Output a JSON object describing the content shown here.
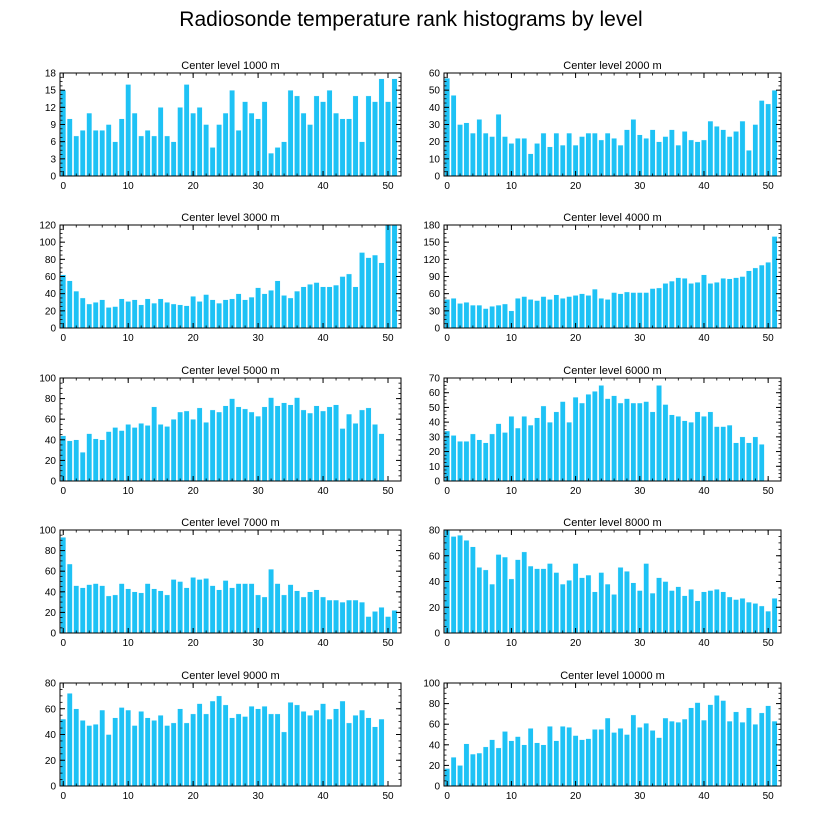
{
  "figure": {
    "title": "Radiosonde temperature rank histograms by level"
  },
  "style": {
    "bar_color": "#1ec2f5",
    "bar_stroke": "#ffffff",
    "axis_color": "#000000"
  },
  "chart_data": [
    {
      "type": "bar",
      "title": "Center level 1000 m",
      "x": [
        0,
        1,
        2,
        3,
        4,
        5,
        6,
        7,
        8,
        9,
        10,
        11,
        12,
        13,
        14,
        15,
        16,
        17,
        18,
        19,
        20,
        21,
        22,
        23,
        24,
        25,
        26,
        27,
        28,
        29,
        30,
        31,
        32,
        33,
        34,
        35,
        36,
        37,
        38,
        39,
        40,
        41,
        42,
        43,
        44,
        45,
        46,
        47,
        48,
        49,
        50,
        51
      ],
      "values": [
        15,
        10,
        7,
        8,
        11,
        8,
        8,
        9,
        6,
        10,
        16,
        11,
        7,
        8,
        7,
        12,
        7,
        6,
        12,
        16,
        11,
        12,
        9,
        5,
        9,
        11,
        15,
        8,
        13,
        11,
        10,
        13,
        4,
        5,
        6,
        15,
        14,
        11,
        9,
        14,
        13,
        15,
        11,
        10,
        10,
        14,
        6,
        14,
        13,
        17,
        13,
        17
      ],
      "xlim": [
        -0.5,
        52
      ],
      "ylim": [
        0,
        18
      ],
      "yticks": [
        0,
        3,
        6,
        9,
        12,
        15,
        18
      ],
      "xticks": [
        0,
        10,
        20,
        30,
        40,
        50
      ]
    },
    {
      "type": "bar",
      "title": "Center level 2000 m",
      "x": [
        0,
        1,
        2,
        3,
        4,
        5,
        6,
        7,
        8,
        9,
        10,
        11,
        12,
        13,
        14,
        15,
        16,
        17,
        18,
        19,
        20,
        21,
        22,
        23,
        24,
        25,
        26,
        27,
        28,
        29,
        30,
        31,
        32,
        33,
        34,
        35,
        36,
        37,
        38,
        39,
        40,
        41,
        42,
        43,
        44,
        45,
        46,
        47,
        48,
        49,
        50,
        51
      ],
      "values": [
        57,
        47,
        30,
        31,
        25,
        33,
        25,
        23,
        36,
        23,
        19,
        22,
        22,
        13,
        19,
        25,
        17,
        25,
        18,
        25,
        18,
        23,
        25,
        25,
        21,
        25,
        22,
        18,
        27,
        33,
        24,
        22,
        27,
        20,
        23,
        27,
        18,
        26,
        21,
        20,
        21,
        32,
        29,
        27,
        23,
        26,
        32,
        15,
        30,
        44,
        42,
        50
      ],
      "xlim": [
        -0.5,
        52
      ],
      "ylim": [
        0,
        60
      ],
      "yticks": [
        0,
        10,
        20,
        30,
        40,
        50,
        60
      ],
      "xticks": [
        0,
        10,
        20,
        30,
        40,
        50
      ]
    },
    {
      "type": "bar",
      "title": "Center level 3000 m",
      "x": [
        0,
        1,
        2,
        3,
        4,
        5,
        6,
        7,
        8,
        9,
        10,
        11,
        12,
        13,
        14,
        15,
        16,
        17,
        18,
        19,
        20,
        21,
        22,
        23,
        24,
        25,
        26,
        27,
        28,
        29,
        30,
        31,
        32,
        33,
        34,
        35,
        36,
        37,
        38,
        39,
        40,
        41,
        42,
        43,
        44,
        45,
        46,
        47,
        48,
        49,
        50,
        51
      ],
      "values": [
        62,
        55,
        43,
        35,
        28,
        30,
        33,
        24,
        25,
        34,
        31,
        33,
        27,
        34,
        29,
        34,
        30,
        28,
        27,
        26,
        37,
        31,
        39,
        33,
        29,
        33,
        34,
        40,
        33,
        36,
        47,
        40,
        44,
        55,
        38,
        35,
        43,
        48,
        51,
        53,
        48,
        48,
        50,
        60,
        63,
        48,
        88,
        82,
        85,
        76,
        120,
        120
      ],
      "xlim": [
        -0.5,
        52
      ],
      "ylim": [
        0,
        120
      ],
      "yticks": [
        0,
        20,
        40,
        60,
        80,
        100,
        120
      ],
      "xticks": [
        0,
        10,
        20,
        30,
        40,
        50
      ]
    },
    {
      "type": "bar",
      "title": "Center level 4000 m",
      "x": [
        0,
        1,
        2,
        3,
        4,
        5,
        6,
        7,
        8,
        9,
        10,
        11,
        12,
        13,
        14,
        15,
        16,
        17,
        18,
        19,
        20,
        21,
        22,
        23,
        24,
        25,
        26,
        27,
        28,
        29,
        30,
        31,
        32,
        33,
        34,
        35,
        36,
        37,
        38,
        39,
        40,
        41,
        42,
        43,
        44,
        45,
        46,
        47,
        48,
        49,
        50,
        51
      ],
      "values": [
        50,
        52,
        43,
        45,
        40,
        40,
        34,
        38,
        40,
        42,
        30,
        52,
        55,
        50,
        48,
        55,
        50,
        58,
        52,
        55,
        57,
        60,
        57,
        68,
        52,
        50,
        62,
        60,
        63,
        62,
        62,
        62,
        69,
        70,
        78,
        82,
        88,
        87,
        78,
        80,
        93,
        78,
        80,
        87,
        86,
        88,
        90,
        100,
        105,
        110,
        115,
        160
      ],
      "xlim": [
        -0.5,
        52
      ],
      "ylim": [
        0,
        180
      ],
      "yticks": [
        0,
        30,
        60,
        90,
        120,
        150,
        180
      ],
      "xticks": [
        0,
        10,
        20,
        30,
        40,
        50
      ]
    },
    {
      "type": "bar",
      "title": "Center level 5000 m",
      "x": [
        0,
        1,
        2,
        3,
        4,
        5,
        6,
        7,
        8,
        9,
        10,
        11,
        12,
        13,
        14,
        15,
        16,
        17,
        18,
        19,
        20,
        21,
        22,
        23,
        24,
        25,
        26,
        27,
        28,
        29,
        30,
        31,
        32,
        33,
        34,
        35,
        36,
        37,
        38,
        39,
        40,
        41,
        42,
        43,
        44,
        45,
        46,
        47,
        48,
        49,
        50,
        51
      ],
      "values": [
        44,
        39,
        40,
        28,
        46,
        41,
        40,
        48,
        52,
        49,
        55,
        52,
        56,
        54,
        72,
        55,
        53,
        60,
        67,
        68,
        60,
        71,
        57,
        69,
        67,
        73,
        80,
        72,
        70,
        67,
        63,
        72,
        81,
        73,
        76,
        74,
        81,
        69,
        66,
        73,
        68,
        72,
        74,
        51,
        65,
        56,
        69,
        71,
        55,
        46,
        0,
        0
      ],
      "xlim": [
        -0.5,
        52
      ],
      "ylim": [
        0,
        100
      ],
      "yticks": [
        0,
        20,
        40,
        60,
        80,
        100
      ],
      "xticks": [
        0,
        10,
        20,
        30,
        40,
        50
      ]
    },
    {
      "type": "bar",
      "title": "Center level 6000 m",
      "x": [
        0,
        1,
        2,
        3,
        4,
        5,
        6,
        7,
        8,
        9,
        10,
        11,
        12,
        13,
        14,
        15,
        16,
        17,
        18,
        19,
        20,
        21,
        22,
        23,
        24,
        25,
        26,
        27,
        28,
        29,
        30,
        31,
        32,
        33,
        34,
        35,
        36,
        37,
        38,
        39,
        40,
        41,
        42,
        43,
        44,
        45,
        46,
        47,
        48,
        49,
        50,
        51
      ],
      "values": [
        34,
        31,
        27,
        27,
        32,
        28,
        26,
        32,
        39,
        33,
        44,
        36,
        44,
        38,
        43,
        51,
        40,
        47,
        54,
        40,
        57,
        53,
        59,
        61,
        65,
        56,
        58,
        53,
        56,
        53,
        53,
        54,
        47,
        65,
        52,
        45,
        44,
        41,
        40,
        47,
        44,
        47,
        37,
        37,
        38,
        26,
        30,
        26,
        30,
        25,
        0,
        0
      ],
      "xlim": [
        -0.5,
        52
      ],
      "ylim": [
        0,
        70
      ],
      "yticks": [
        0,
        10,
        20,
        30,
        40,
        50,
        60,
        70
      ],
      "xticks": [
        0,
        10,
        20,
        30,
        40,
        50
      ]
    },
    {
      "type": "bar",
      "title": "Center level 7000 m",
      "x": [
        0,
        1,
        2,
        3,
        4,
        5,
        6,
        7,
        8,
        9,
        10,
        11,
        12,
        13,
        14,
        15,
        16,
        17,
        18,
        19,
        20,
        21,
        22,
        23,
        24,
        25,
        26,
        27,
        28,
        29,
        30,
        31,
        32,
        33,
        34,
        35,
        36,
        37,
        38,
        39,
        40,
        41,
        42,
        43,
        44,
        45,
        46,
        47,
        48,
        49,
        50,
        51
      ],
      "values": [
        93,
        67,
        46,
        44,
        47,
        48,
        46,
        36,
        37,
        48,
        43,
        40,
        39,
        48,
        43,
        41,
        37,
        52,
        50,
        44,
        54,
        52,
        53,
        46,
        42,
        51,
        44,
        48,
        48,
        48,
        37,
        35,
        62,
        48,
        37,
        47,
        41,
        35,
        40,
        42,
        35,
        32,
        32,
        30,
        32,
        32,
        30,
        16,
        21,
        25,
        16,
        22
      ],
      "xlim": [
        -0.5,
        52
      ],
      "ylim": [
        0,
        100
      ],
      "yticks": [
        0,
        20,
        40,
        60,
        80,
        100
      ],
      "xticks": [
        0,
        10,
        20,
        30,
        40,
        50
      ]
    },
    {
      "type": "bar",
      "title": "Center level 8000 m",
      "x": [
        0,
        1,
        2,
        3,
        4,
        5,
        6,
        7,
        8,
        9,
        10,
        11,
        12,
        13,
        14,
        15,
        16,
        17,
        18,
        19,
        20,
        21,
        22,
        23,
        24,
        25,
        26,
        27,
        28,
        29,
        30,
        31,
        32,
        33,
        34,
        35,
        36,
        37,
        38,
        39,
        40,
        41,
        42,
        43,
        44,
        45,
        46,
        47,
        48,
        49,
        50,
        51
      ],
      "values": [
        80,
        75,
        76,
        72,
        67,
        51,
        49,
        38,
        61,
        59,
        42,
        57,
        63,
        52,
        50,
        50,
        54,
        47,
        38,
        41,
        54,
        43,
        45,
        32,
        47,
        38,
        30,
        51,
        48,
        39,
        33,
        54,
        31,
        43,
        40,
        33,
        36,
        29,
        34,
        25,
        32,
        33,
        34,
        32,
        28,
        26,
        27,
        24,
        23,
        21,
        17,
        27
      ],
      "xlim": [
        -0.5,
        52
      ],
      "ylim": [
        0,
        80
      ],
      "yticks": [
        0,
        20,
        40,
        60,
        80
      ],
      "xticks": [
        0,
        10,
        20,
        30,
        40,
        50
      ]
    },
    {
      "type": "bar",
      "title": "Center level 9000 m",
      "x": [
        0,
        1,
        2,
        3,
        4,
        5,
        6,
        7,
        8,
        9,
        10,
        11,
        12,
        13,
        14,
        15,
        16,
        17,
        18,
        19,
        20,
        21,
        22,
        23,
        24,
        25,
        26,
        27,
        28,
        29,
        30,
        31,
        32,
        33,
        34,
        35,
        36,
        37,
        38,
        39,
        40,
        41,
        42,
        43,
        44,
        45,
        46,
        47,
        48,
        49,
        50,
        51
      ],
      "values": [
        52,
        72,
        60,
        51,
        47,
        48,
        59,
        40,
        53,
        61,
        59,
        47,
        58,
        53,
        51,
        55,
        47,
        49,
        60,
        49,
        56,
        64,
        56,
        66,
        70,
        63,
        53,
        56,
        54,
        62,
        60,
        62,
        56,
        56,
        42,
        65,
        63,
        58,
        55,
        59,
        64,
        52,
        60,
        66,
        49,
        55,
        59,
        53,
        46,
        52,
        0,
        0
      ],
      "xlim": [
        -0.5,
        52
      ],
      "ylim": [
        0,
        80
      ],
      "yticks": [
        0,
        20,
        40,
        60,
        80
      ],
      "xticks": [
        0,
        10,
        20,
        30,
        40,
        50
      ]
    },
    {
      "type": "bar",
      "title": "Center level 10000 m",
      "x": [
        0,
        1,
        2,
        3,
        4,
        5,
        6,
        7,
        8,
        9,
        10,
        11,
        12,
        13,
        14,
        15,
        16,
        17,
        18,
        19,
        20,
        21,
        22,
        23,
        24,
        25,
        26,
        27,
        28,
        29,
        30,
        31,
        32,
        33,
        34,
        35,
        36,
        37,
        38,
        39,
        40,
        41,
        42,
        43,
        44,
        45,
        46,
        47,
        48,
        49,
        50,
        51
      ],
      "values": [
        17,
        28,
        20,
        41,
        31,
        32,
        38,
        45,
        37,
        53,
        44,
        48,
        40,
        56,
        42,
        40,
        58,
        44,
        58,
        57,
        49,
        45,
        46,
        55,
        55,
        66,
        52,
        56,
        50,
        69,
        57,
        61,
        54,
        47,
        66,
        63,
        62,
        65,
        76,
        81,
        64,
        79,
        88,
        83,
        63,
        72,
        62,
        76,
        60,
        71,
        78,
        63
      ],
      "xlim": [
        -0.5,
        52
      ],
      "ylim": [
        0,
        100
      ],
      "yticks": [
        0,
        20,
        40,
        60,
        80,
        100
      ],
      "xticks": [
        0,
        10,
        20,
        30,
        40,
        50
      ]
    }
  ]
}
